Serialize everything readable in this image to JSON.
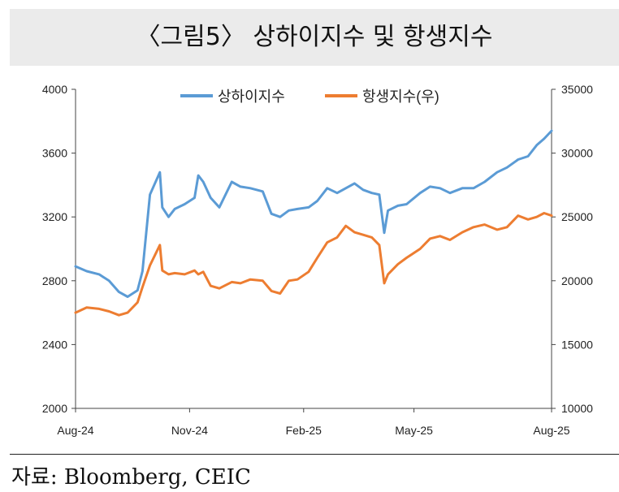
{
  "title": "〈그림5〉 상하이지수 및 항생지수",
  "source": "자료: Bloomberg, CEIC",
  "chart_data": {
    "type": "line",
    "x_tick_labels": [
      "Aug-24",
      "Nov-24",
      "Feb-25",
      "May-25",
      "Aug-25"
    ],
    "left_axis": {
      "ylim": [
        2000,
        4000
      ],
      "ticks": [
        "4000",
        "3600",
        "3200",
        "2800",
        "2400",
        "2000"
      ]
    },
    "right_axis": {
      "ylim": [
        10000,
        35000
      ],
      "ticks": [
        "35000",
        "30000",
        "25000",
        "20000",
        "15000",
        "10000"
      ]
    },
    "legend_placement": "top-center",
    "series": [
      {
        "name": "상하이지수",
        "color": "#5b9bd5",
        "axis": "left",
        "x": [
          "2024-08-01",
          "2024-08-10",
          "2024-08-20",
          "2024-08-28",
          "2024-09-05",
          "2024-09-12",
          "2024-09-20",
          "2024-09-24",
          "2024-09-30",
          "2024-10-08",
          "2024-10-10",
          "2024-10-15",
          "2024-10-20",
          "2024-10-28",
          "2024-11-05",
          "2024-11-08",
          "2024-11-12",
          "2024-11-18",
          "2024-11-25",
          "2024-12-05",
          "2024-12-12",
          "2024-12-20",
          "2024-12-30",
          "2025-01-06",
          "2025-01-13",
          "2025-01-20",
          "2025-01-27",
          "2025-02-05",
          "2025-02-12",
          "2025-02-20",
          "2025-02-28",
          "2025-03-07",
          "2025-03-14",
          "2025-03-21",
          "2025-03-28",
          "2025-04-03",
          "2025-04-07",
          "2025-04-10",
          "2025-04-18",
          "2025-04-25",
          "2025-05-06",
          "2025-05-14",
          "2025-05-22",
          "2025-05-30",
          "2025-06-09",
          "2025-06-18",
          "2025-06-27",
          "2025-07-07",
          "2025-07-15",
          "2025-07-24",
          "2025-08-01",
          "2025-08-08",
          "2025-08-14",
          "2025-08-20"
        ],
        "values": [
          2890,
          2860,
          2840,
          2800,
          2730,
          2700,
          2740,
          2860,
          3340,
          3480,
          3260,
          3200,
          3250,
          3280,
          3320,
          3460,
          3420,
          3320,
          3260,
          3420,
          3390,
          3380,
          3360,
          3220,
          3200,
          3240,
          3250,
          3260,
          3300,
          3380,
          3350,
          3380,
          3410,
          3370,
          3350,
          3340,
          3100,
          3240,
          3270,
          3280,
          3350,
          3390,
          3380,
          3350,
          3380,
          3380,
          3420,
          3480,
          3510,
          3560,
          3580,
          3650,
          3690,
          3740
        ]
      },
      {
        "name": "항생지수(우)",
        "color": "#ed7d31",
        "axis": "right",
        "x": [
          "2024-08-01",
          "2024-08-10",
          "2024-08-20",
          "2024-08-28",
          "2024-09-05",
          "2024-09-12",
          "2024-09-20",
          "2024-09-24",
          "2024-09-30",
          "2024-10-08",
          "2024-10-10",
          "2024-10-15",
          "2024-10-20",
          "2024-10-28",
          "2024-11-05",
          "2024-11-08",
          "2024-11-12",
          "2024-11-18",
          "2024-11-25",
          "2024-12-05",
          "2024-12-12",
          "2024-12-20",
          "2024-12-30",
          "2025-01-06",
          "2025-01-13",
          "2025-01-20",
          "2025-01-27",
          "2025-02-05",
          "2025-02-12",
          "2025-02-20",
          "2025-02-28",
          "2025-03-07",
          "2025-03-14",
          "2025-03-21",
          "2025-03-28",
          "2025-04-03",
          "2025-04-07",
          "2025-04-10",
          "2025-04-18",
          "2025-04-25",
          "2025-05-06",
          "2025-05-14",
          "2025-05-22",
          "2025-05-30",
          "2025-06-09",
          "2025-06-18",
          "2025-06-27",
          "2025-07-07",
          "2025-07-15",
          "2025-07-24",
          "2025-08-01",
          "2025-08-08",
          "2025-08-14",
          "2025-08-20"
        ],
        "values": [
          17500,
          17900,
          17800,
          17600,
          17300,
          17500,
          18300,
          19500,
          21200,
          22800,
          20800,
          20500,
          20600,
          20500,
          20800,
          20500,
          20700,
          19600,
          19400,
          19900,
          19800,
          20100,
          20000,
          19200,
          19000,
          20000,
          20100,
          20700,
          21800,
          23000,
          23400,
          24300,
          23800,
          23600,
          23400,
          22800,
          19800,
          20500,
          21300,
          21800,
          22500,
          23300,
          23500,
          23200,
          23800,
          24200,
          24400,
          24000,
          24200,
          25100,
          24800,
          25000,
          25300,
          25100
        ]
      }
    ]
  }
}
